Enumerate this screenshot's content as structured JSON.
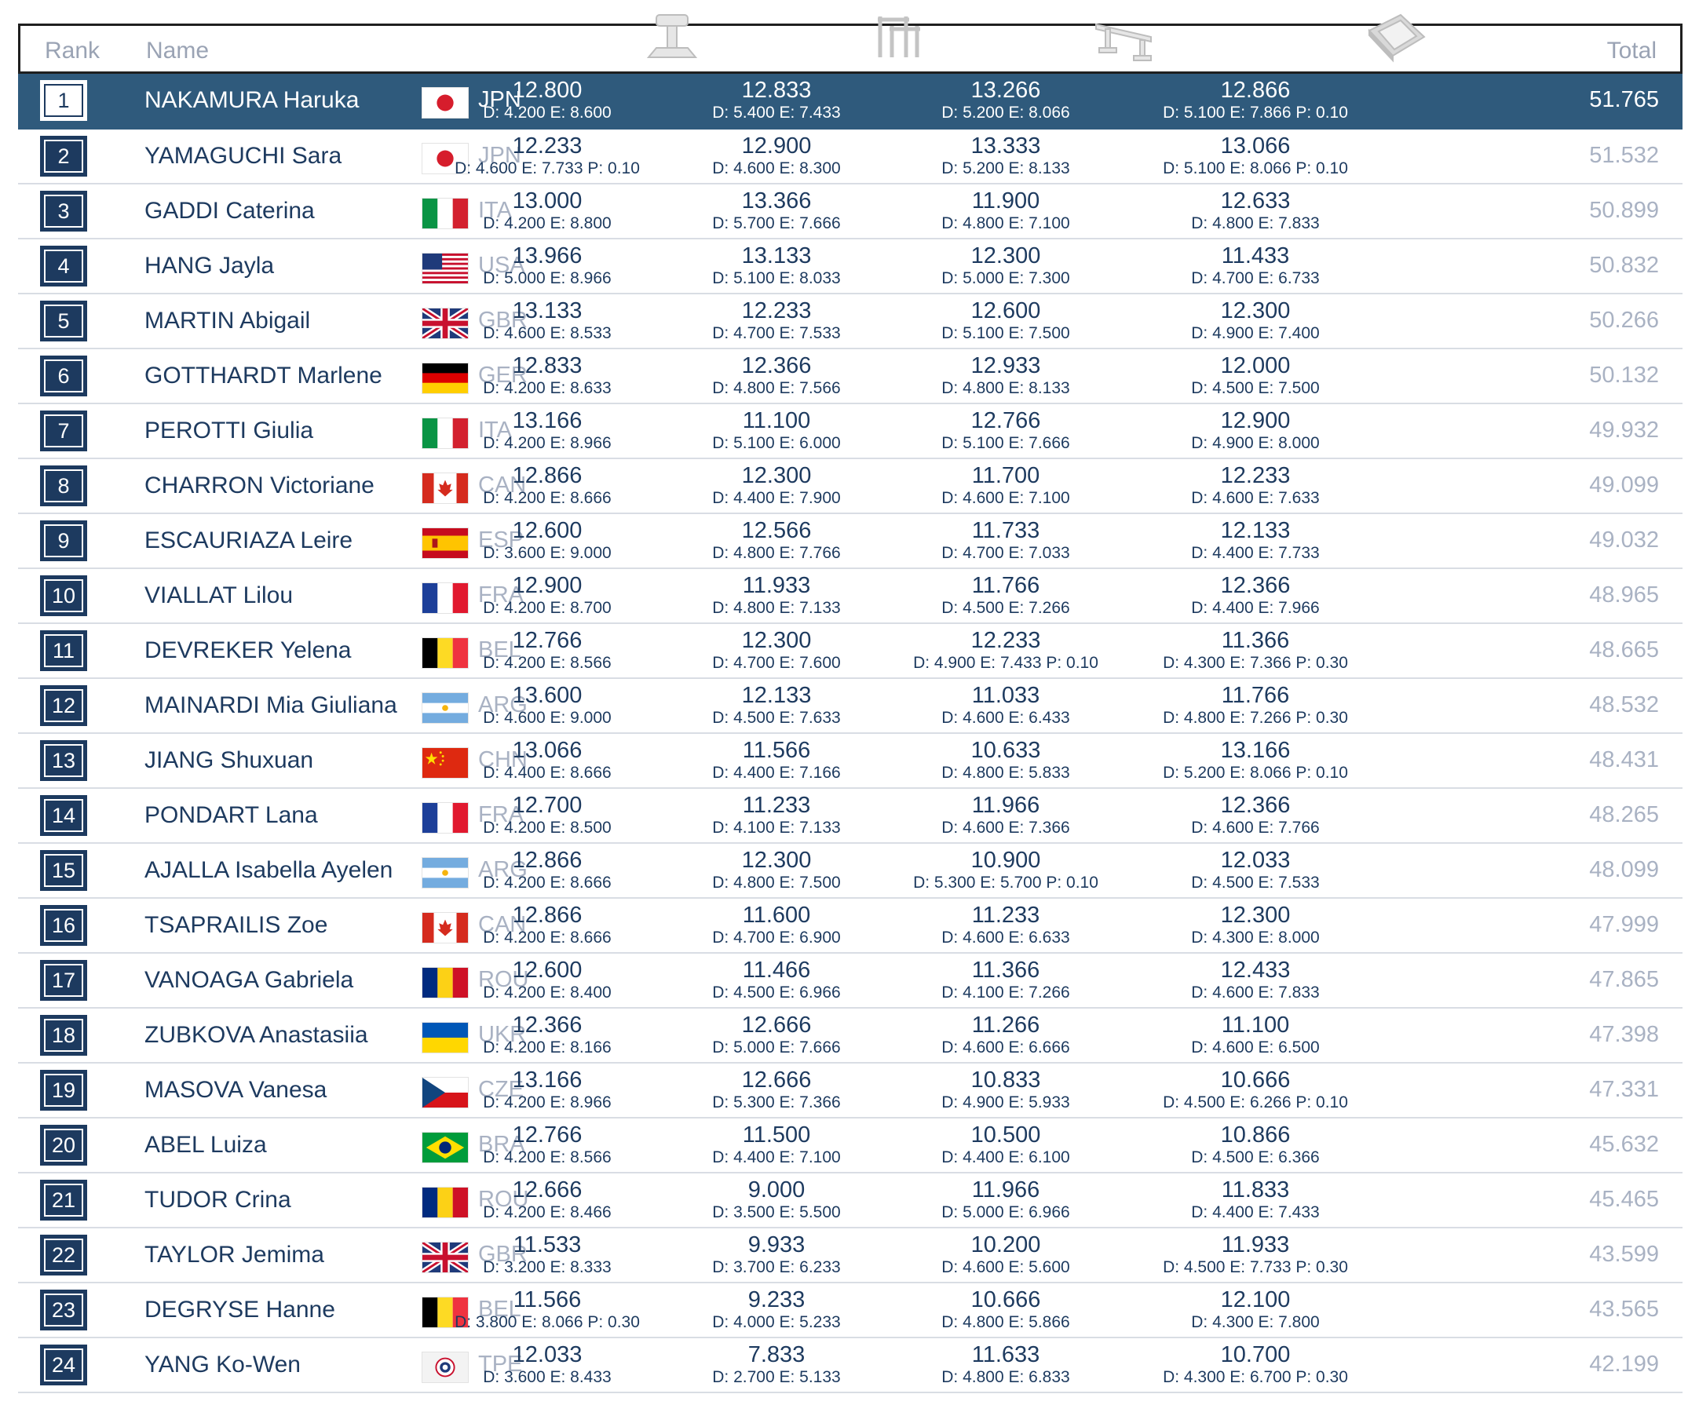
{
  "header": {
    "rank_label": "Rank",
    "name_label": "Name",
    "total_label": "Total",
    "apparatus_icons": [
      "vault-icon",
      "uneven-bars-icon",
      "balance-beam-icon",
      "floor-exercise-icon"
    ]
  },
  "colors": {
    "navy": "#1d3a5f",
    "highlight_row": "#2f5a7c",
    "muted_text": "#a9b2c3"
  },
  "rows": [
    {
      "rank": "1",
      "name": "NAKAMURA Haruka",
      "noc": "JPN",
      "s": [
        {
          "v": "12.800",
          "d": "D: 4.200 E: 8.600"
        },
        {
          "v": "12.833",
          "d": "D: 5.400 E: 7.433"
        },
        {
          "v": "13.266",
          "d": "D: 5.200 E: 8.066"
        },
        {
          "v": "12.866",
          "d": "D: 5.100 E: 7.866 P: 0.10"
        }
      ],
      "total": "51.765"
    },
    {
      "rank": "2",
      "name": "YAMAGUCHI Sara",
      "noc": "JPN",
      "s": [
        {
          "v": "12.233",
          "d": "D: 4.600 E: 7.733 P: 0.10"
        },
        {
          "v": "12.900",
          "d": "D: 4.600 E: 8.300"
        },
        {
          "v": "13.333",
          "d": "D: 5.200 E: 8.133"
        },
        {
          "v": "13.066",
          "d": "D: 5.100 E: 8.066 P: 0.10"
        }
      ],
      "total": "51.532"
    },
    {
      "rank": "3",
      "name": "GADDI Caterina",
      "noc": "ITA",
      "s": [
        {
          "v": "13.000",
          "d": "D: 4.200 E: 8.800"
        },
        {
          "v": "13.366",
          "d": "D: 5.700 E: 7.666"
        },
        {
          "v": "11.900",
          "d": "D: 4.800 E: 7.100"
        },
        {
          "v": "12.633",
          "d": "D: 4.800 E: 7.833"
        }
      ],
      "total": "50.899"
    },
    {
      "rank": "4",
      "name": "HANG Jayla",
      "noc": "USA",
      "s": [
        {
          "v": "13.966",
          "d": "D: 5.000 E: 8.966"
        },
        {
          "v": "13.133",
          "d": "D: 5.100 E: 8.033"
        },
        {
          "v": "12.300",
          "d": "D: 5.000 E: 7.300"
        },
        {
          "v": "11.433",
          "d": "D: 4.700 E: 6.733"
        }
      ],
      "total": "50.832"
    },
    {
      "rank": "5",
      "name": "MARTIN Abigail",
      "noc": "GBR",
      "s": [
        {
          "v": "13.133",
          "d": "D: 4.600 E: 8.533"
        },
        {
          "v": "12.233",
          "d": "D: 4.700 E: 7.533"
        },
        {
          "v": "12.600",
          "d": "D: 5.100 E: 7.500"
        },
        {
          "v": "12.300",
          "d": "D: 4.900 E: 7.400"
        }
      ],
      "total": "50.266"
    },
    {
      "rank": "6",
      "name": "GOTTHARDT Marlene",
      "noc": "GER",
      "s": [
        {
          "v": "12.833",
          "d": "D: 4.200 E: 8.633"
        },
        {
          "v": "12.366",
          "d": "D: 4.800 E: 7.566"
        },
        {
          "v": "12.933",
          "d": "D: 4.800 E: 8.133"
        },
        {
          "v": "12.000",
          "d": "D: 4.500 E: 7.500"
        }
      ],
      "total": "50.132"
    },
    {
      "rank": "7",
      "name": "PEROTTI Giulia",
      "noc": "ITA",
      "s": [
        {
          "v": "13.166",
          "d": "D: 4.200 E: 8.966"
        },
        {
          "v": "11.100",
          "d": "D: 5.100 E: 6.000"
        },
        {
          "v": "12.766",
          "d": "D: 5.100 E: 7.666"
        },
        {
          "v": "12.900",
          "d": "D: 4.900 E: 8.000"
        }
      ],
      "total": "49.932"
    },
    {
      "rank": "8",
      "name": "CHARRON Victoriane",
      "noc": "CAN",
      "s": [
        {
          "v": "12.866",
          "d": "D: 4.200 E: 8.666"
        },
        {
          "v": "12.300",
          "d": "D: 4.400 E: 7.900"
        },
        {
          "v": "11.700",
          "d": "D: 4.600 E: 7.100"
        },
        {
          "v": "12.233",
          "d": "D: 4.600 E: 7.633"
        }
      ],
      "total": "49.099"
    },
    {
      "rank": "9",
      "name": "ESCAURIAZA Leire",
      "noc": "ESP",
      "s": [
        {
          "v": "12.600",
          "d": "D: 3.600 E: 9.000"
        },
        {
          "v": "12.566",
          "d": "D: 4.800 E: 7.766"
        },
        {
          "v": "11.733",
          "d": "D: 4.700 E: 7.033"
        },
        {
          "v": "12.133",
          "d": "D: 4.400 E: 7.733"
        }
      ],
      "total": "49.032"
    },
    {
      "rank": "10",
      "name": "VIALLAT Lilou",
      "noc": "FRA",
      "s": [
        {
          "v": "12.900",
          "d": "D: 4.200 E: 8.700"
        },
        {
          "v": "11.933",
          "d": "D: 4.800 E: 7.133"
        },
        {
          "v": "11.766",
          "d": "D: 4.500 E: 7.266"
        },
        {
          "v": "12.366",
          "d": "D: 4.400 E: 7.966"
        }
      ],
      "total": "48.965"
    },
    {
      "rank": "11",
      "name": "DEVREKER Yelena",
      "noc": "BEL",
      "s": [
        {
          "v": "12.766",
          "d": "D: 4.200 E: 8.566"
        },
        {
          "v": "12.300",
          "d": "D: 4.700 E: 7.600"
        },
        {
          "v": "12.233",
          "d": "D: 4.900 E: 7.433 P: 0.10"
        },
        {
          "v": "11.366",
          "d": "D: 4.300 E: 7.366 P: 0.30"
        }
      ],
      "total": "48.665"
    },
    {
      "rank": "12",
      "name": "MAINARDI Mia Giuliana",
      "noc": "ARG",
      "s": [
        {
          "v": "13.600",
          "d": "D: 4.600 E: 9.000"
        },
        {
          "v": "12.133",
          "d": "D: 4.500 E: 7.633"
        },
        {
          "v": "11.033",
          "d": "D: 4.600 E: 6.433"
        },
        {
          "v": "11.766",
          "d": "D: 4.800 E: 7.266 P: 0.30"
        }
      ],
      "total": "48.532"
    },
    {
      "rank": "13",
      "name": "JIANG Shuxuan",
      "noc": "CHN",
      "s": [
        {
          "v": "13.066",
          "d": "D: 4.400 E: 8.666"
        },
        {
          "v": "11.566",
          "d": "D: 4.400 E: 7.166"
        },
        {
          "v": "10.633",
          "d": "D: 4.800 E: 5.833"
        },
        {
          "v": "13.166",
          "d": "D: 5.200 E: 8.066 P: 0.10"
        }
      ],
      "total": "48.431"
    },
    {
      "rank": "14",
      "name": "PONDART Lana",
      "noc": "FRA",
      "s": [
        {
          "v": "12.700",
          "d": "D: 4.200 E: 8.500"
        },
        {
          "v": "11.233",
          "d": "D: 4.100 E: 7.133"
        },
        {
          "v": "11.966",
          "d": "D: 4.600 E: 7.366"
        },
        {
          "v": "12.366",
          "d": "D: 4.600 E: 7.766"
        }
      ],
      "total": "48.265"
    },
    {
      "rank": "15",
      "name": "AJALLA Isabella Ayelen",
      "noc": "ARG",
      "s": [
        {
          "v": "12.866",
          "d": "D: 4.200 E: 8.666"
        },
        {
          "v": "12.300",
          "d": "D: 4.800 E: 7.500"
        },
        {
          "v": "10.900",
          "d": "D: 5.300 E: 5.700 P: 0.10"
        },
        {
          "v": "12.033",
          "d": "D: 4.500 E: 7.533"
        }
      ],
      "total": "48.099"
    },
    {
      "rank": "16",
      "name": "TSAPRAILIS Zoe",
      "noc": "CAN",
      "s": [
        {
          "v": "12.866",
          "d": "D: 4.200 E: 8.666"
        },
        {
          "v": "11.600",
          "d": "D: 4.700 E: 6.900"
        },
        {
          "v": "11.233",
          "d": "D: 4.600 E: 6.633"
        },
        {
          "v": "12.300",
          "d": "D: 4.300 E: 8.000"
        }
      ],
      "total": "47.999"
    },
    {
      "rank": "17",
      "name": "VANOAGA Gabriela",
      "noc": "ROU",
      "s": [
        {
          "v": "12.600",
          "d": "D: 4.200 E: 8.400"
        },
        {
          "v": "11.466",
          "d": "D: 4.500 E: 6.966"
        },
        {
          "v": "11.366",
          "d": "D: 4.100 E: 7.266"
        },
        {
          "v": "12.433",
          "d": "D: 4.600 E: 7.833"
        }
      ],
      "total": "47.865"
    },
    {
      "rank": "18",
      "name": "ZUBKOVA Anastasiia",
      "noc": "UKR",
      "s": [
        {
          "v": "12.366",
          "d": "D: 4.200 E: 8.166"
        },
        {
          "v": "12.666",
          "d": "D: 5.000 E: 7.666"
        },
        {
          "v": "11.266",
          "d": "D: 4.600 E: 6.666"
        },
        {
          "v": "11.100",
          "d": "D: 4.600 E: 6.500"
        }
      ],
      "total": "47.398"
    },
    {
      "rank": "19",
      "name": "MASOVA Vanesa",
      "noc": "CZE",
      "s": [
        {
          "v": "13.166",
          "d": "D: 4.200 E: 8.966"
        },
        {
          "v": "12.666",
          "d": "D: 5.300 E: 7.366"
        },
        {
          "v": "10.833",
          "d": "D: 4.900 E: 5.933"
        },
        {
          "v": "10.666",
          "d": "D: 4.500 E: 6.266 P: 0.10"
        }
      ],
      "total": "47.331"
    },
    {
      "rank": "20",
      "name": "ABEL Luiza",
      "noc": "BRA",
      "s": [
        {
          "v": "12.766",
          "d": "D: 4.200 E: 8.566"
        },
        {
          "v": "11.500",
          "d": "D: 4.400 E: 7.100"
        },
        {
          "v": "10.500",
          "d": "D: 4.400 E: 6.100"
        },
        {
          "v": "10.866",
          "d": "D: 4.500 E: 6.366"
        }
      ],
      "total": "45.632"
    },
    {
      "rank": "21",
      "name": "TUDOR Crina",
      "noc": "ROU",
      "s": [
        {
          "v": "12.666",
          "d": "D: 4.200 E: 8.466"
        },
        {
          "v": "9.000",
          "d": "D: 3.500 E: 5.500"
        },
        {
          "v": "11.966",
          "d": "D: 5.000 E: 6.966"
        },
        {
          "v": "11.833",
          "d": "D: 4.400 E: 7.433"
        }
      ],
      "total": "45.465"
    },
    {
      "rank": "22",
      "name": "TAYLOR Jemima",
      "noc": "GBR",
      "s": [
        {
          "v": "11.533",
          "d": "D: 3.200 E: 8.333"
        },
        {
          "v": "9.933",
          "d": "D: 3.700 E: 6.233"
        },
        {
          "v": "10.200",
          "d": "D: 4.600 E: 5.600"
        },
        {
          "v": "11.933",
          "d": "D: 4.500 E: 7.733 P: 0.30"
        }
      ],
      "total": "43.599"
    },
    {
      "rank": "23",
      "name": "DEGRYSE Hanne",
      "noc": "BEL",
      "s": [
        {
          "v": "11.566",
          "d": "D: 3.800 E: 8.066 P: 0.30"
        },
        {
          "v": "9.233",
          "d": "D: 4.000 E: 5.233"
        },
        {
          "v": "10.666",
          "d": "D: 4.800 E: 5.866"
        },
        {
          "v": "12.100",
          "d": "D: 4.300 E: 7.800"
        }
      ],
      "total": "43.565"
    },
    {
      "rank": "24",
      "name": "YANG Ko-Wen",
      "noc": "TPE",
      "s": [
        {
          "v": "12.033",
          "d": "D: 3.600 E: 8.433"
        },
        {
          "v": "7.833",
          "d": "D: 2.700 E: 5.133"
        },
        {
          "v": "11.633",
          "d": "D: 4.800 E: 6.833"
        },
        {
          "v": "10.700",
          "d": "D: 4.300 E: 6.700 P: 0.30"
        }
      ],
      "total": "42.199"
    }
  ]
}
